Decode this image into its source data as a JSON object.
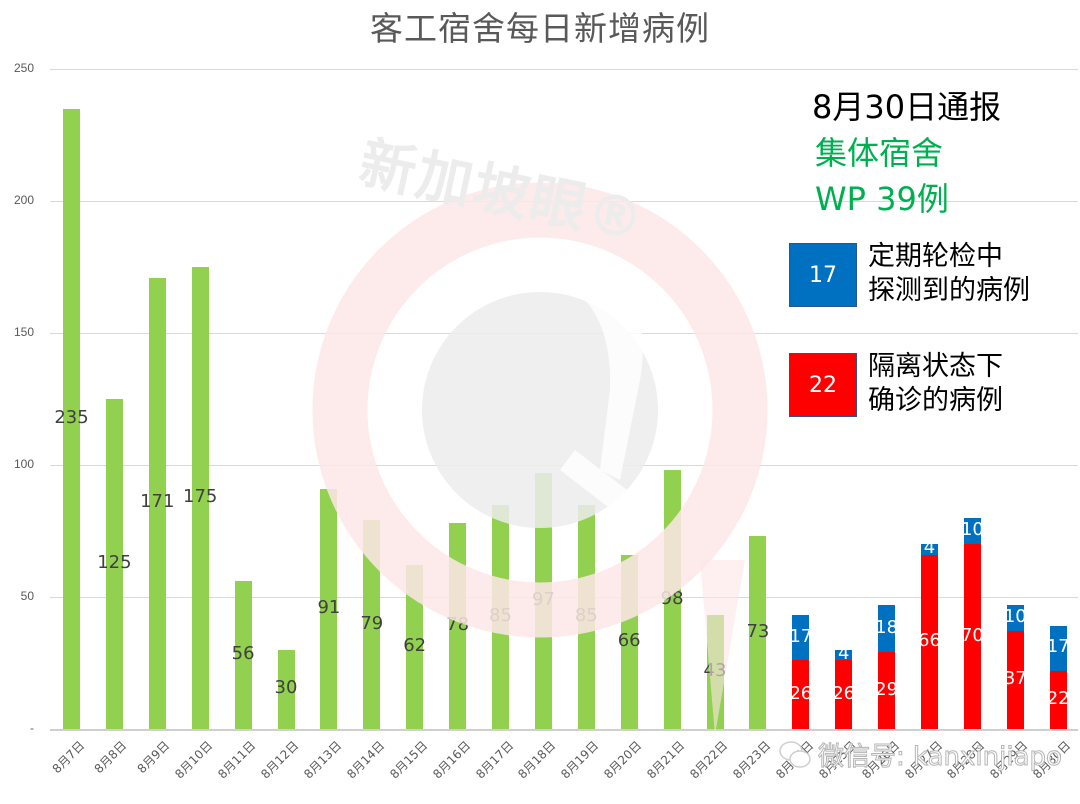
{
  "title": "客工宿舍每日新增病例",
  "watermark": {
    "brand_text": "新加坡眼®",
    "wechat_text": "微信号: kanxinjiapo"
  },
  "annotation": {
    "date_line": "8月30日通报",
    "category_line": "集体宿舍",
    "total_line": "WP 39例",
    "legend": [
      {
        "value": "17",
        "color": "#0070c0",
        "line1": "定期轮检中",
        "line2": "探测到的病例"
      },
      {
        "value": "22",
        "color": "#ff0000",
        "line1": "隔离状态下",
        "line2": "确诊的病例"
      }
    ]
  },
  "y_axis": {
    "ticks": [
      "250",
      "200",
      "150",
      "100",
      "50",
      "-"
    ]
  },
  "chart_data": {
    "type": "bar",
    "title": "客工宿舍每日新增病例",
    "xlabel": "",
    "ylabel": "",
    "ylim": [
      0,
      250
    ],
    "yticks": [
      0,
      50,
      100,
      150,
      200,
      250
    ],
    "grid": true,
    "legend_position": "right (custom annotation)",
    "categories": [
      "8月7日",
      "8月8日",
      "8月9日",
      "8月10日",
      "8月11日",
      "8月12日",
      "8月13日",
      "8月14日",
      "8月15日",
      "8月16日",
      "8月17日",
      "8月18日",
      "8月19日",
      "8月20日",
      "8月21日",
      "8月22日",
      "8月23日",
      "8月24日",
      "8月25日",
      "8月26日",
      "8月27日",
      "8月28日",
      "8月29日",
      "8月30日"
    ],
    "series": [
      {
        "name": "每日新增病例",
        "color": "#92d050",
        "values": [
          235,
          125,
          171,
          175,
          56,
          30,
          91,
          79,
          62,
          78,
          85,
          97,
          85,
          66,
          98,
          43,
          73,
          null,
          null,
          null,
          null,
          null,
          null,
          null
        ]
      },
      {
        "name": "隔离状态下确诊的病例",
        "color": "#ff0000",
        "values": [
          null,
          null,
          null,
          null,
          null,
          null,
          null,
          null,
          null,
          null,
          null,
          null,
          null,
          null,
          null,
          null,
          null,
          26,
          26,
          29,
          66,
          70,
          37,
          22
        ]
      },
      {
        "name": "定期轮检中探测到的病例",
        "color": "#0070c0",
        "values": [
          null,
          null,
          null,
          null,
          null,
          null,
          null,
          null,
          null,
          null,
          null,
          null,
          null,
          null,
          null,
          null,
          null,
          17,
          4,
          18,
          4,
          10,
          10,
          17
        ]
      }
    ],
    "annotations": [
      "8月30日通报",
      "集体宿舍",
      "WP 39例",
      "17 定期轮检中探测到的病例",
      "22 隔离状态下确诊的病例"
    ]
  }
}
